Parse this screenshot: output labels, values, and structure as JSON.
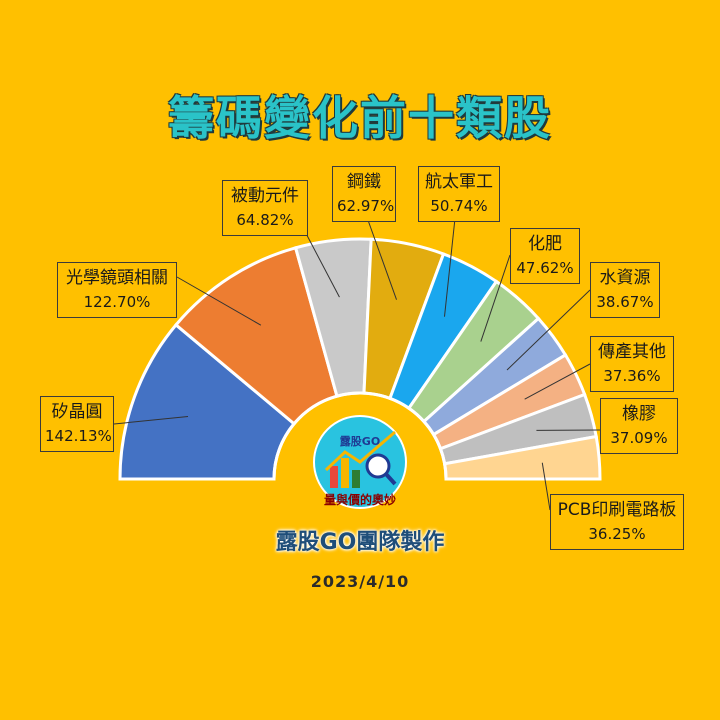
{
  "title": "籌碼變化前十類股",
  "team": "露股GO團隊製作",
  "date": "2023/4/10",
  "logo": {
    "top_text": "露股GO",
    "bottom_text": "量與價的奧妙",
    "icon": "magnifier-chart-icon"
  },
  "chart_data": {
    "type": "pie",
    "subtype": "semi-donut",
    "categories": [
      "矽晶圓",
      "光學鏡頭相關",
      "被動元件",
      "鋼鐵",
      "航太軍工",
      "化肥",
      "水資源",
      "傳產其他",
      "橡膠",
      "PCB印刷電路板"
    ],
    "values": [
      142.13,
      122.7,
      64.82,
      62.97,
      50.74,
      47.62,
      38.67,
      37.36,
      37.09,
      36.25
    ],
    "value_labels": [
      "142.13%",
      "122.70%",
      "64.82%",
      "62.97%",
      "50.74%",
      "47.62%",
      "38.67%",
      "37.36%",
      "37.09%",
      "36.25%"
    ],
    "colors": [
      "#4472C4",
      "#ED7D31",
      "#C9C9C9",
      "#E2AC0F",
      "#1AA7EE",
      "#A9D18E",
      "#8FAADC",
      "#F4B183",
      "#BFBFBF",
      "#FFD591"
    ],
    "unit": "%"
  }
}
